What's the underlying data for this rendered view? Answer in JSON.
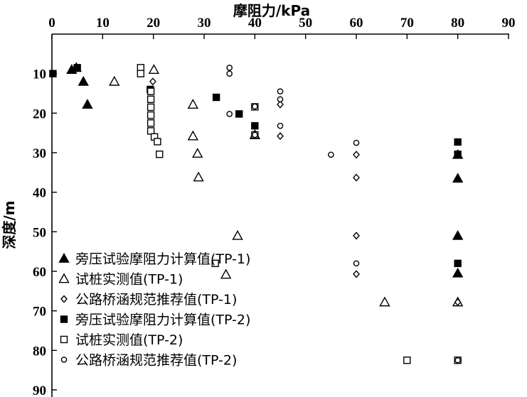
{
  "chart_data": {
    "type": "scatter",
    "xlabel": "摩阻力/kPa",
    "ylabel": "深度/m",
    "xlim": [
      0,
      90
    ],
    "ylim": [
      90,
      0
    ],
    "x_ticks": [
      0,
      10,
      20,
      30,
      40,
      50,
      60,
      70,
      80,
      90
    ],
    "y_ticks": [
      10,
      20,
      30,
      40,
      50,
      60,
      70,
      80,
      90
    ],
    "x_axis_position": "top",
    "y_axis_inverted": true,
    "grid": false,
    "legend_position": "bottom-left",
    "series": [
      {
        "name": "旁压试验摩阻力计算值(TP-1)",
        "marker": "triangle-filled",
        "points": [
          [
            3.9,
            9.0
          ],
          [
            4.8,
            8.5
          ],
          [
            6.2,
            12.0
          ],
          [
            7.0,
            17.8
          ],
          [
            40.0,
            25.5
          ],
          [
            80.0,
            30.5
          ],
          [
            80.0,
            36.5
          ],
          [
            80.0,
            51.0
          ],
          [
            80.0,
            60.5
          ]
        ]
      },
      {
        "name": "试桩实测值(TP-1)",
        "marker": "triangle-open",
        "points": [
          [
            12.3,
            12.0
          ],
          [
            20.1,
            9.0
          ],
          [
            27.8,
            17.8
          ],
          [
            27.8,
            25.8
          ],
          [
            28.7,
            30.2
          ],
          [
            28.9,
            36.2
          ],
          [
            34.3,
            60.8
          ],
          [
            36.6,
            51.0
          ],
          [
            65.6,
            67.8
          ],
          [
            80.0,
            67.8
          ]
        ]
      },
      {
        "name": "公路桥涵规范推荐值(TP-1)",
        "marker": "diamond-open",
        "points": [
          [
            19.9,
            12.0
          ],
          [
            45.0,
            17.8
          ],
          [
            45.0,
            25.8
          ],
          [
            60.0,
            30.5
          ],
          [
            60.0,
            36.3
          ],
          [
            60.0,
            51.0
          ],
          [
            60.0,
            60.7
          ],
          [
            80.0,
            67.8
          ]
        ]
      },
      {
        "name": "旁压试验摩阻力计算值(TP-2)",
        "marker": "square-filled",
        "points": [
          [
            0.2,
            10.0
          ],
          [
            5.0,
            8.5
          ],
          [
            19.4,
            14.0
          ],
          [
            32.4,
            16.0
          ],
          [
            36.9,
            20.2
          ],
          [
            40.0,
            23.2
          ],
          [
            80.0,
            27.3
          ],
          [
            80.0,
            30.4
          ],
          [
            80.0,
            58.0
          ]
        ]
      },
      {
        "name": "试桩实测值(TP-2)",
        "marker": "square-open",
        "points": [
          [
            17.5,
            8.5
          ],
          [
            17.5,
            10.0
          ],
          [
            19.5,
            14.5
          ],
          [
            19.5,
            16.5
          ],
          [
            19.5,
            18.5
          ],
          [
            19.5,
            20.5
          ],
          [
            19.5,
            22.5
          ],
          [
            19.5,
            24.5
          ],
          [
            20.2,
            26.0
          ],
          [
            20.8,
            27.2
          ],
          [
            21.2,
            30.4
          ],
          [
            32.2,
            58.0
          ],
          [
            40.0,
            18.4
          ],
          [
            40.0,
            25.5
          ],
          [
            70.0,
            82.5
          ],
          [
            80.0,
            82.5
          ]
        ]
      },
      {
        "name": "公路桥涵规范推荐值(TP-2)",
        "marker": "circle-open",
        "points": [
          [
            35.0,
            8.5
          ],
          [
            35.0,
            10.0
          ],
          [
            35.0,
            20.2
          ],
          [
            40.0,
            18.3
          ],
          [
            40.0,
            25.5
          ],
          [
            45.0,
            14.5
          ],
          [
            45.0,
            16.5
          ],
          [
            45.0,
            23.2
          ],
          [
            55.0,
            30.5
          ],
          [
            60.0,
            27.5
          ],
          [
            60.0,
            58.0
          ],
          [
            80.0,
            82.5
          ]
        ]
      }
    ]
  }
}
